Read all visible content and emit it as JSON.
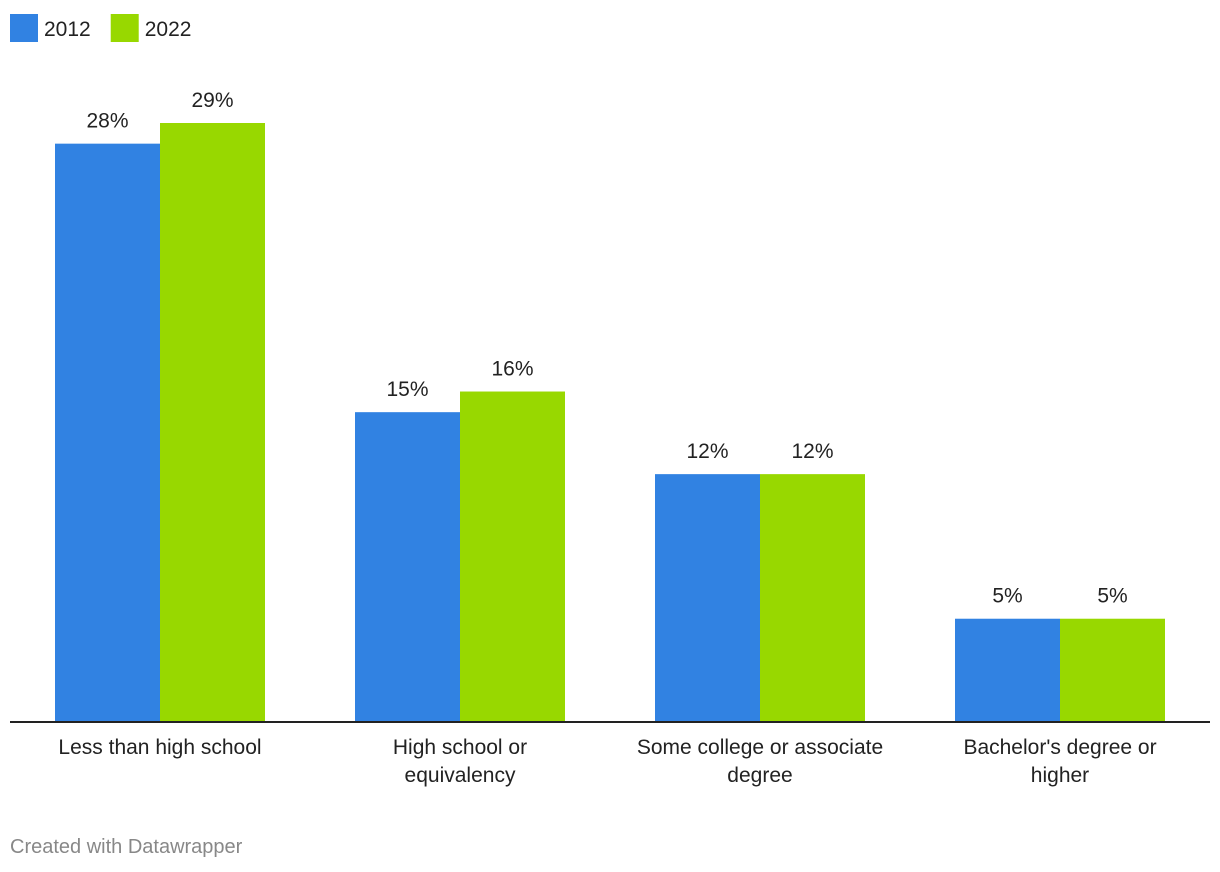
{
  "chart_data": {
    "type": "grouped_bar",
    "categories": [
      "Less than high school",
      "High school or equivalency",
      "Some college or associate degree",
      "Bachelor's degree or higher"
    ],
    "series": [
      {
        "name": "2012",
        "color": "#3182e2",
        "values": [
          28,
          15,
          12,
          5
        ],
        "value_labels": [
          "28%",
          "15%",
          "12%",
          "5%"
        ]
      },
      {
        "name": "2022",
        "color": "#98d800",
        "values": [
          29,
          16,
          12,
          5
        ],
        "value_labels": [
          "29%",
          "16%",
          "12%",
          "5%"
        ]
      }
    ],
    "legend": "top-left",
    "footer": "Created with Datawrapper"
  }
}
